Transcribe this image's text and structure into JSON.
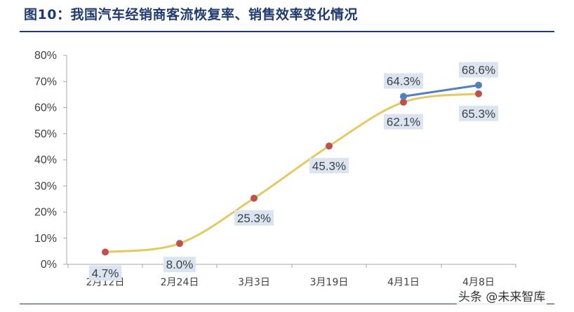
{
  "header": {
    "title": "图10：我国汽车经销商客流恢复率、销售效率变化情况"
  },
  "watermark": "头条 @未来智库",
  "chart_data": {
    "type": "line",
    "title": "图10：我国汽车经销商客流恢复率、销售效率变化情况",
    "xlabel": "",
    "ylabel": "",
    "categories": [
      "2月12日",
      "2月24日",
      "3月3日",
      "3月19日",
      "4月1日",
      "4月8日"
    ],
    "ylim": [
      0,
      80
    ],
    "yticks": [
      "0%",
      "10%",
      "20%",
      "30%",
      "40%",
      "50%",
      "60%",
      "70%",
      "80%"
    ],
    "grid": false,
    "legend": "none",
    "series": [
      {
        "values": [
          4.7,
          8.0,
          25.3,
          45.3,
          62.1,
          65.3
        ],
        "labels": [
          "4.7%",
          "8.0%",
          "25.3%",
          "45.3%",
          "62.1%",
          "65.3%"
        ],
        "line_color": "#e6c862",
        "marker_color": "#c0504d",
        "smooth": true
      },
      {
        "values": [
          null,
          null,
          null,
          null,
          64.3,
          68.6
        ],
        "labels": [
          "",
          "",
          "",
          "",
          "64.3%",
          "68.6%"
        ],
        "line_color": "#4f81bd",
        "marker_color": "#4f81bd",
        "smooth": false
      }
    ],
    "label_bg": "#dbe5f1"
  }
}
